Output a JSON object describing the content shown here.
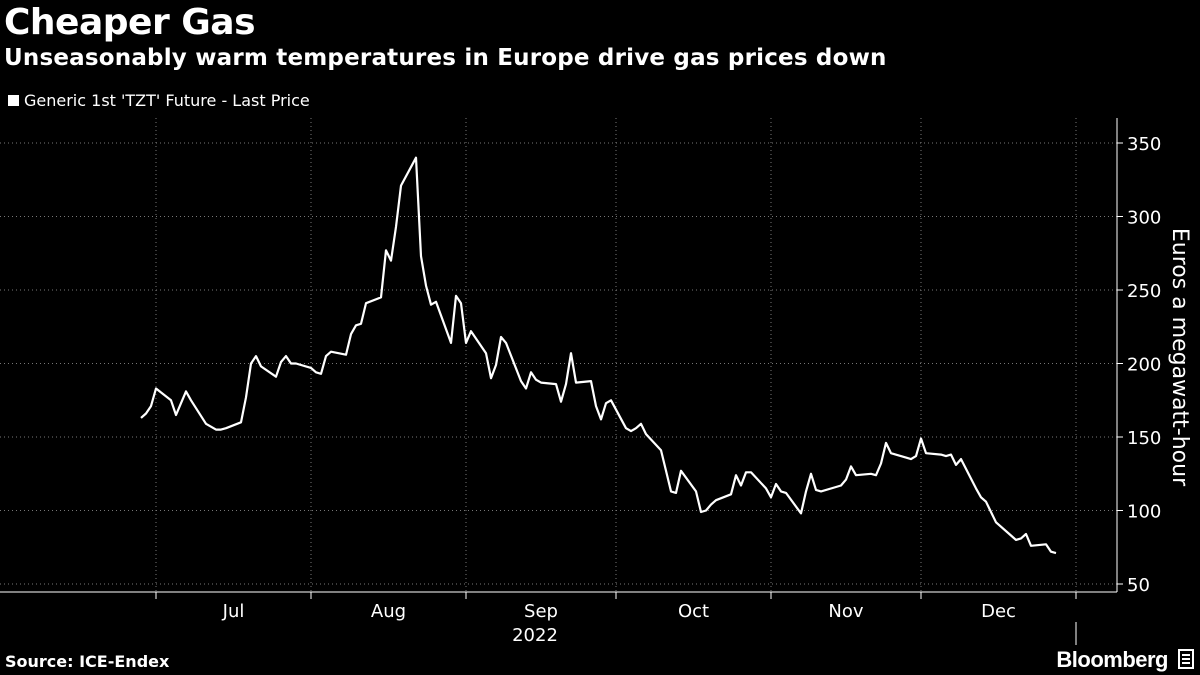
{
  "header": {
    "title": "Cheaper Gas",
    "subtitle": "Unseasonably warm temperatures in Europe drive gas prices down"
  },
  "footer": {
    "source": "Source: ICE-Endex",
    "brand": "Bloomberg"
  },
  "colors": {
    "background": "#000000",
    "line": "#ffffff",
    "grid": "#777777"
  },
  "chart_data": {
    "type": "line",
    "title": "Cheaper Gas",
    "subtitle": "Unseasonably warm temperatures in Europe drive gas prices down",
    "ylabel": "Euros a megawatt-hour",
    "xlabel": "2022",
    "year_label": "2022",
    "ylim": [
      50,
      360
    ],
    "yticks": [
      50,
      100,
      150,
      200,
      250,
      300,
      350
    ],
    "ytick_labels": [
      "50",
      "100",
      "150",
      "200",
      "250",
      "300",
      "350"
    ],
    "y_axis_side": "right",
    "grid": true,
    "legend": "top-left",
    "month_labels": [
      "Jul",
      "Aug",
      "Sep",
      "Oct",
      "Nov",
      "Dec"
    ],
    "series": [
      {
        "name": "Generic 1st 'TZT' Future - Last Price",
        "start": "2022-06-28",
        "frequency": "trading-day",
        "values": [
          163,
          166,
          171,
          183,
          175,
          165,
          173,
          181,
          175,
          159,
          157,
          155,
          155,
          156,
          160,
          177,
          200,
          205,
          198,
          191,
          201,
          205,
          200,
          200,
          197,
          194,
          193,
          205,
          208,
          206,
          220,
          226,
          227,
          241,
          245,
          277,
          270,
          293,
          321,
          340,
          273,
          253,
          240,
          242,
          214,
          246,
          241,
          214,
          222,
          207,
          190,
          199,
          218,
          214,
          188,
          183,
          194,
          189,
          187,
          186,
          174,
          186,
          207,
          187,
          188,
          171,
          162,
          173,
          175,
          156,
          154,
          156,
          159,
          152,
          141,
          127,
          113,
          112,
          127,
          113,
          99,
          100,
          104,
          107,
          111,
          124,
          117,
          126,
          126,
          115,
          109,
          118,
          113,
          112,
          98,
          113,
          125,
          114,
          113,
          116,
          117,
          121,
          130,
          124,
          125,
          124,
          132,
          146,
          139,
          136,
          135,
          137,
          149,
          139,
          138,
          137,
          138,
          131,
          135,
          115,
          109,
          106,
          99,
          92,
          83,
          80,
          81,
          84,
          76,
          77,
          72,
          71
        ]
      }
    ]
  }
}
